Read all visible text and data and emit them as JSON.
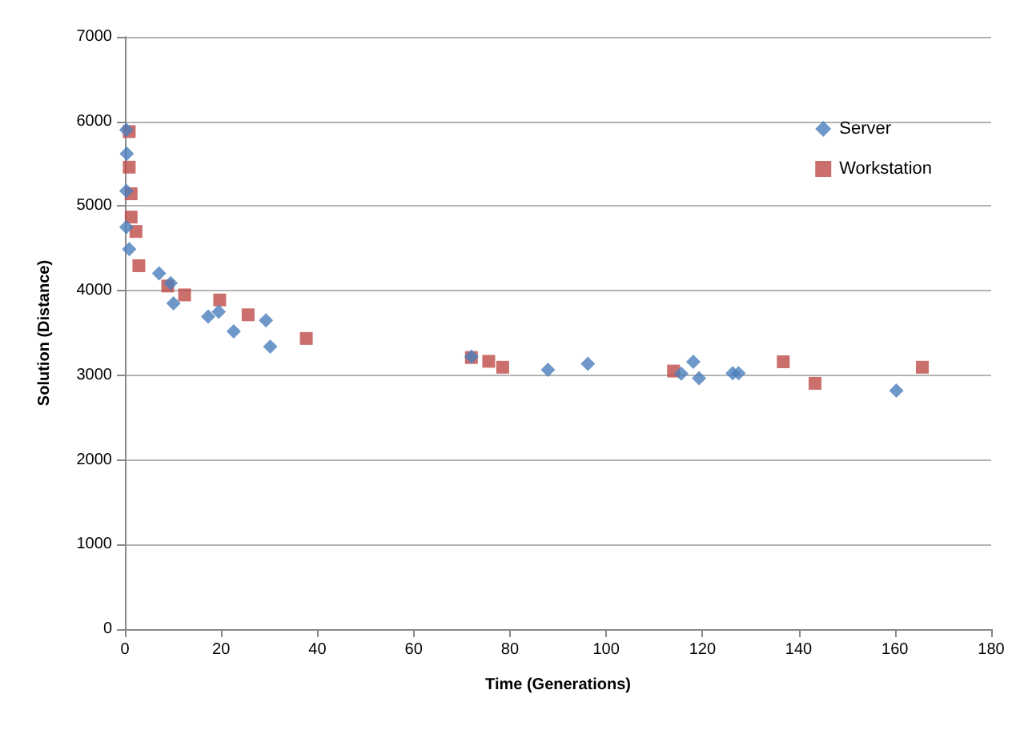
{
  "chart_data": {
    "type": "scatter",
    "xlabel": "Time (Generations)",
    "ylabel": "Solution (Distance)",
    "xlim": [
      0,
      180
    ],
    "xticks": [
      0,
      20,
      40,
      60,
      80,
      100,
      120,
      140,
      160,
      180
    ],
    "ylim": [
      0,
      7000
    ],
    "yticks": [
      0,
      1000,
      2000,
      3000,
      4000,
      5000,
      6000,
      7000
    ],
    "grid": "y",
    "legend": "top right",
    "series": [
      {
        "name": "Server",
        "color": "#4a7ebb",
        "marker": "diamond",
        "x": [
          0.3,
          0.4,
          0.3,
          0.3,
          0.9,
          7.1,
          9.5,
          10.1,
          17.3,
          19.5,
          22.6,
          29.3,
          30.2,
          72,
          87.9,
          96.2,
          115.6,
          118.1,
          119.3,
          126.3,
          127.5,
          160.3
        ],
        "values": [
          5900,
          5620,
          5180,
          4750,
          4490,
          4205,
          4090,
          3850,
          3695,
          3750,
          3520,
          3650,
          3340,
          3220,
          3065,
          3135,
          3020,
          3160,
          2965,
          3025,
          3025,
          2820
        ]
      },
      {
        "name": "Workstation",
        "color": "#be4b48",
        "marker": "square",
        "x": [
          0.9,
          0.9,
          1.3,
          1.3,
          2.3,
          2.9,
          8.9,
          12.4,
          19.7,
          25.6,
          37.7,
          72,
          75.6,
          78.5,
          114,
          136.8,
          143.4,
          165.7
        ],
        "values": [
          5880,
          5460,
          5145,
          4870,
          4700,
          4295,
          4055,
          3950,
          3890,
          3715,
          3435,
          3210,
          3165,
          3095,
          3050,
          3160,
          2905,
          3095
        ]
      }
    ]
  }
}
